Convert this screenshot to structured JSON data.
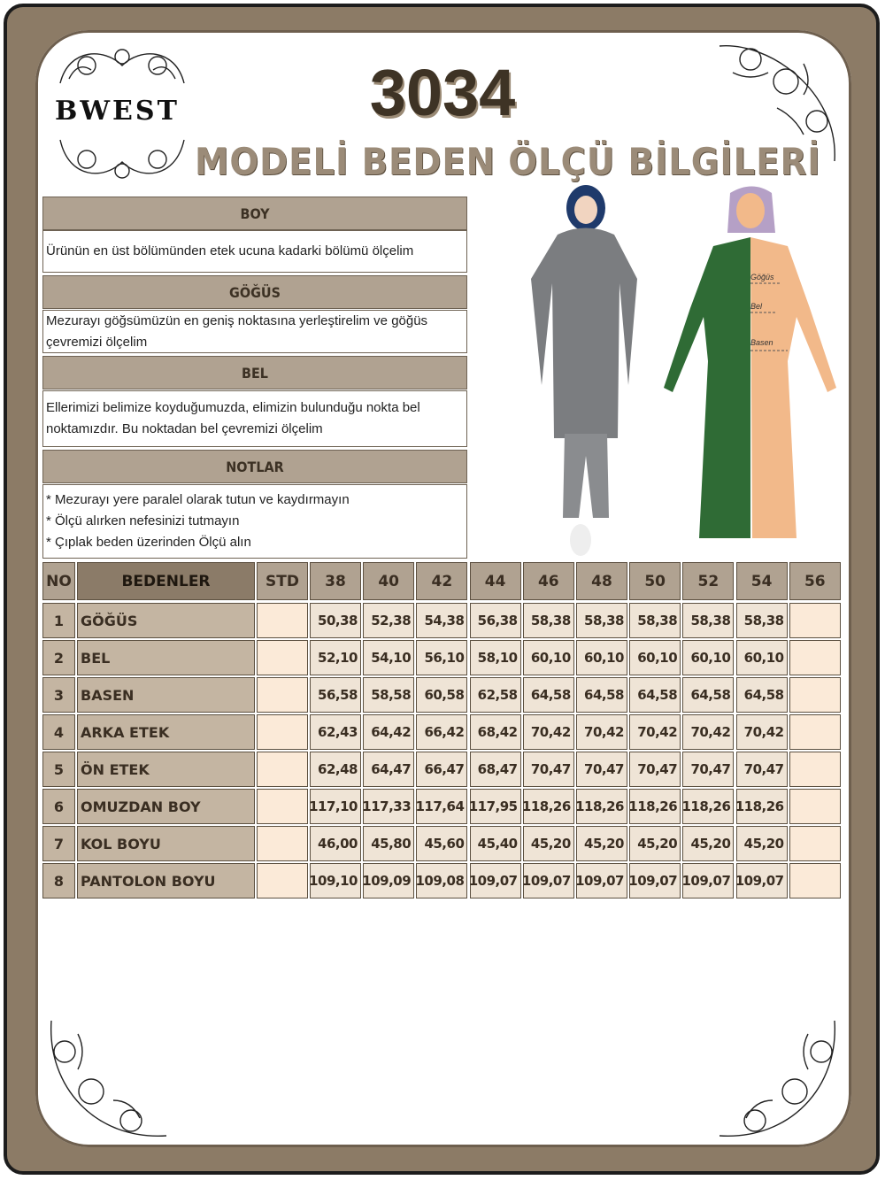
{
  "brand": "BWEST",
  "title": {
    "model_no": "3034",
    "subtitle": "MODELİ BEDEN ÖLÇÜ BİLGİLERİ"
  },
  "sections": [
    {
      "heading": "BOY",
      "lines": [
        "Ürünün en üst bölümünden etek ucuna kadarki bölümü ölçelim"
      ]
    },
    {
      "heading": "GÖĞÜS",
      "lines": [
        "Mezurayı göğsümüzün en geniş noktasına yerleştirelim ve göğüs",
        "çevremizi ölçelim"
      ]
    },
    {
      "heading": "BEL",
      "lines": [
        "Ellerimizi belimize koyduğumuzda, elimizin bulunduğu nokta bel",
        "noktamızdır. Bu noktadan bel çevremizi ölçelim"
      ]
    },
    {
      "heading": "NOTLAR",
      "lines": [
        "* Mezurayı yere paralel olarak tutun ve kaydırmayın",
        "* Ölçü alırken nefesinizi tutmayın",
        "* Çıplak beden üzerinden Ölçü alın"
      ]
    }
  ],
  "figure_labels": {
    "chest": "Göğüs",
    "waist": "Bel",
    "hip": "Basen"
  },
  "table": {
    "headers": {
      "no": "NO",
      "name": "BEDENLER",
      "std": "STD",
      "sizes": [
        "38",
        "40",
        "42",
        "44",
        "46",
        "48",
        "50",
        "52",
        "54",
        "56"
      ]
    },
    "rows": [
      {
        "no": "1",
        "name": "GÖĞÜS",
        "std": "",
        "values": [
          "50,38",
          "52,38",
          "54,38",
          "56,38",
          "58,38",
          "58,38",
          "58,38",
          "58,38",
          "58,38",
          ""
        ]
      },
      {
        "no": "2",
        "name": "BEL",
        "std": "",
        "values": [
          "52,10",
          "54,10",
          "56,10",
          "58,10",
          "60,10",
          "60,10",
          "60,10",
          "60,10",
          "60,10",
          ""
        ]
      },
      {
        "no": "3",
        "name": "BASEN",
        "std": "",
        "values": [
          "56,58",
          "58,58",
          "60,58",
          "62,58",
          "64,58",
          "64,58",
          "64,58",
          "64,58",
          "64,58",
          ""
        ]
      },
      {
        "no": "4",
        "name": "ARKA ETEK",
        "std": "",
        "values": [
          "62,43",
          "64,42",
          "66,42",
          "68,42",
          "70,42",
          "70,42",
          "70,42",
          "70,42",
          "70,42",
          ""
        ]
      },
      {
        "no": "5",
        "name": "ÖN ETEK",
        "std": "",
        "values": [
          "62,48",
          "64,47",
          "66,47",
          "68,47",
          "70,47",
          "70,47",
          "70,47",
          "70,47",
          "70,47",
          ""
        ]
      },
      {
        "no": "6",
        "name": "OMUZDAN BOY",
        "std": "",
        "values": [
          "117,10",
          "117,33",
          "117,64",
          "117,95",
          "118,26",
          "118,26",
          "118,26",
          "118,26",
          "118,26",
          ""
        ]
      },
      {
        "no": "7",
        "name": "KOL BOYU",
        "std": "",
        "values": [
          "46,00",
          "45,80",
          "45,60",
          "45,40",
          "45,20",
          "45,20",
          "45,20",
          "45,20",
          "45,20",
          ""
        ]
      },
      {
        "no": "8",
        "name": "PANTOLON BOYU",
        "std": "",
        "values": [
          "109,10",
          "109,09",
          "109,08",
          "109,07",
          "109,07",
          "109,07",
          "109,07",
          "109,07",
          "109,07",
          ""
        ]
      }
    ]
  },
  "colors": {
    "frame": "#8c7b66",
    "header": "#b0a291",
    "header_main": "#8b7b68",
    "label": "#c4b5a2",
    "value": "#efe4d6",
    "std": "#fbead8",
    "dress_green": "#2f6b35",
    "skin": "#f2b98a",
    "hijab": "#b5a0c6"
  }
}
